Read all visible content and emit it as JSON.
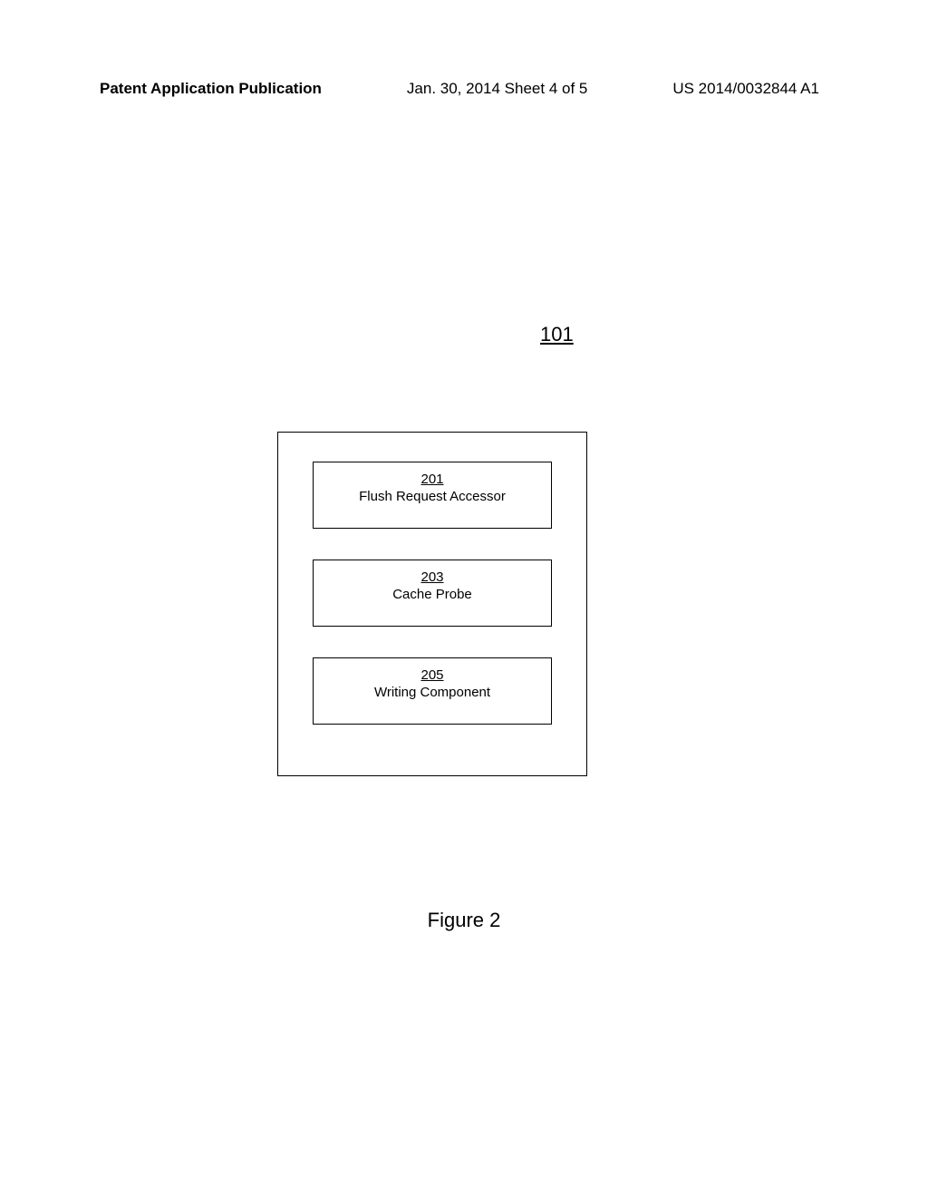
{
  "header": {
    "left": "Patent Application Publication",
    "center": "Jan. 30, 2014  Sheet 4 of 5",
    "right": "US 2014/0032844 A1"
  },
  "diagram": {
    "ref_number": "101",
    "boxes": [
      {
        "number": "201",
        "label": "Flush Request Accessor"
      },
      {
        "number": "203",
        "label": "Cache Probe"
      },
      {
        "number": "205",
        "label": "Writing Component"
      }
    ],
    "outer_box": {
      "border_color": "#000000",
      "background_color": "#ffffff"
    },
    "inner_box": {
      "border_color": "#000000",
      "background_color": "#ffffff",
      "number_fontsize": 15,
      "label_fontsize": 15
    }
  },
  "figure_caption": "Figure 2",
  "colors": {
    "text": "#000000",
    "background": "#ffffff"
  },
  "fonts": {
    "header_fontsize": 17,
    "ref_fontsize": 22,
    "caption_fontsize": 22
  }
}
